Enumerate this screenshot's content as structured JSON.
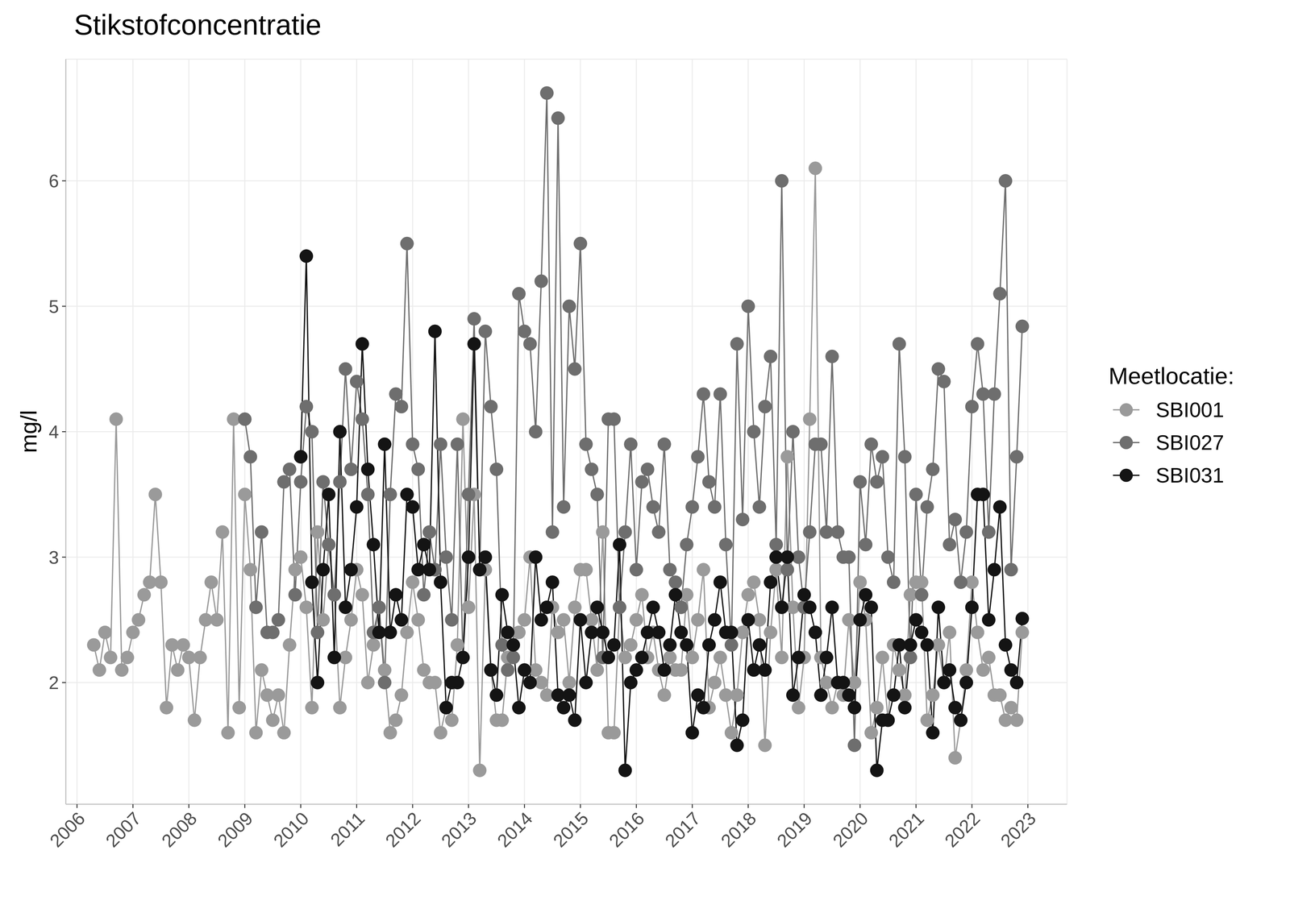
{
  "chart_data": {
    "type": "line",
    "title": "Stikstofconcentratie",
    "ylabel": "mg/l",
    "legend_title": "Meetlocatie:",
    "legend": "right",
    "grid": true,
    "marker": "circle",
    "line_style": "solid",
    "xlim": [
      2005.8,
      2023.7
    ],
    "xticks": [
      2006,
      2007,
      2008,
      2009,
      2010,
      2011,
      2012,
      2013,
      2014,
      2015,
      2016,
      2017,
      2018,
      2019,
      2020,
      2021,
      2022,
      2023
    ],
    "ylim": [
      1.03,
      6.97
    ],
    "yticks": [
      2,
      3,
      4,
      5,
      6
    ],
    "series": [
      {
        "name": "SBI001",
        "color": "#9a9a9a",
        "x": [
          2006.3,
          2006.4,
          2006.5,
          2006.6,
          2006.7,
          2006.8,
          2006.9,
          2007.0,
          2007.1,
          2007.2,
          2007.3,
          2007.4,
          2007.5,
          2007.6,
          2007.7,
          2007.8,
          2007.9,
          2008.0,
          2008.1,
          2008.2,
          2008.3,
          2008.4,
          2008.5,
          2008.6,
          2008.7,
          2008.8,
          2008.9,
          2009.0,
          2009.1,
          2009.2,
          2009.3,
          2009.4,
          2009.5,
          2009.6,
          2009.7,
          2009.8,
          2009.9,
          2010.0,
          2010.1,
          2010.2,
          2010.3,
          2010.4,
          2010.5,
          2010.6,
          2010.7,
          2010.8,
          2010.9,
          2011.0,
          2011.1,
          2011.2,
          2011.3,
          2011.4,
          2011.5,
          2011.6,
          2011.7,
          2011.8,
          2011.9,
          2012.0,
          2012.1,
          2012.2,
          2012.3,
          2012.4,
          2012.5,
          2012.6,
          2012.7,
          2012.8,
          2012.9,
          2013.0,
          2013.1,
          2013.2,
          2013.3,
          2013.4,
          2013.5,
          2013.6,
          2013.7,
          2013.8,
          2013.9,
          2014.0,
          2014.1,
          2014.2,
          2014.3,
          2014.4,
          2014.5,
          2014.6,
          2014.7,
          2014.8,
          2014.9,
          2015.0,
          2015.1,
          2015.2,
          2015.3,
          2015.4,
          2015.5,
          2015.6,
          2015.7,
          2015.8,
          2015.9,
          2016.0,
          2016.1,
          2016.2,
          2016.3,
          2016.4,
          2016.5,
          2016.6,
          2016.7,
          2016.8,
          2016.9,
          2017.0,
          2017.1,
          2017.2,
          2017.3,
          2017.4,
          2017.5,
          2017.6,
          2017.7,
          2017.8,
          2017.9,
          2018.0,
          2018.1,
          2018.2,
          2018.3,
          2018.4,
          2018.5,
          2018.6,
          2018.7,
          2018.8,
          2018.9,
          2019.0,
          2019.1,
          2019.2,
          2019.3,
          2019.4,
          2019.5,
          2019.6,
          2019.7,
          2019.8,
          2019.9,
          2020.0,
          2020.1,
          2020.2,
          2020.3,
          2020.4,
          2020.5,
          2020.6,
          2020.7,
          2020.8,
          2020.9,
          2021.0,
          2021.1,
          2021.2,
          2021.3,
          2021.4,
          2021.5,
          2021.6,
          2021.7,
          2021.8,
          2021.9,
          2022.0,
          2022.1,
          2022.2,
          2022.3,
          2022.4,
          2022.5,
          2022.6,
          2022.7,
          2022.8,
          2022.9
        ],
        "values": [
          2.3,
          2.1,
          2.4,
          2.2,
          4.1,
          2.1,
          2.2,
          2.4,
          2.5,
          2.7,
          2.8,
          3.5,
          2.8,
          1.8,
          2.3,
          2.1,
          2.3,
          2.2,
          1.7,
          2.2,
          2.5,
          2.8,
          2.5,
          3.2,
          1.6,
          4.1,
          1.8,
          3.5,
          2.9,
          1.6,
          2.1,
          1.9,
          1.7,
          1.9,
          1.6,
          2.3,
          2.9,
          3.0,
          2.6,
          1.8,
          3.2,
          2.5,
          3.1,
          2.7,
          1.8,
          2.2,
          2.5,
          2.9,
          2.7,
          2.0,
          2.3,
          2.6,
          2.1,
          1.6,
          1.7,
          1.9,
          2.4,
          2.8,
          2.5,
          2.1,
          2.0,
          2.0,
          1.6,
          1.8,
          1.7,
          2.3,
          4.1,
          2.6,
          3.5,
          1.3,
          2.9,
          2.1,
          1.7,
          1.7,
          2.2,
          2.3,
          2.4,
          2.5,
          3.0,
          2.1,
          2.0,
          1.9,
          2.6,
          2.4,
          2.5,
          2.0,
          2.6,
          2.9,
          2.9,
          2.5,
          2.1,
          3.2,
          1.6,
          1.6,
          2.6,
          2.2,
          2.3,
          2.5,
          2.7,
          2.2,
          2.4,
          2.1,
          1.9,
          2.2,
          2.1,
          2.1,
          2.7,
          2.2,
          2.5,
          2.9,
          1.8,
          2.0,
          2.2,
          1.9,
          1.6,
          1.9,
          2.4,
          2.7,
          2.8,
          2.5,
          1.5,
          2.4,
          2.9,
          2.2,
          3.8,
          2.6,
          1.8,
          2.2,
          4.1,
          6.1,
          2.2,
          2.0,
          1.8,
          2.0,
          1.9,
          2.5,
          2.0,
          2.8,
          2.5,
          1.6,
          1.8,
          2.2,
          1.7,
          2.3,
          2.1,
          1.9,
          2.7,
          2.8,
          2.8,
          1.7,
          1.9,
          2.3,
          2.0,
          2.4,
          1.4,
          1.7,
          2.1,
          2.8,
          2.4,
          2.1,
          2.2,
          1.9,
          1.9,
          1.7,
          1.8,
          1.7,
          2.4
        ]
      },
      {
        "name": "SBI027",
        "color": "#6e6e6e",
        "x": [
          2009.0,
          2009.1,
          2009.2,
          2009.3,
          2009.4,
          2009.5,
          2009.6,
          2009.7,
          2009.8,
          2009.9,
          2010.0,
          2010.1,
          2010.2,
          2010.3,
          2010.4,
          2010.5,
          2010.6,
          2010.7,
          2010.8,
          2010.9,
          2011.0,
          2011.1,
          2011.2,
          2011.3,
          2011.4,
          2011.5,
          2011.6,
          2011.7,
          2011.8,
          2011.9,
          2012.0,
          2012.1,
          2012.2,
          2012.3,
          2012.4,
          2012.5,
          2012.6,
          2012.7,
          2012.8,
          2012.9,
          2013.0,
          2013.1,
          2013.2,
          2013.3,
          2013.4,
          2013.5,
          2013.6,
          2013.7,
          2013.8,
          2013.9,
          2014.0,
          2014.1,
          2014.2,
          2014.3,
          2014.4,
          2014.5,
          2014.6,
          2014.7,
          2014.8,
          2014.9,
          2015.0,
          2015.1,
          2015.2,
          2015.3,
          2015.4,
          2015.5,
          2015.6,
          2015.7,
          2015.8,
          2015.9,
          2016.0,
          2016.1,
          2016.2,
          2016.3,
          2016.4,
          2016.5,
          2016.6,
          2016.7,
          2016.8,
          2016.9,
          2017.0,
          2017.1,
          2017.2,
          2017.3,
          2017.4,
          2017.5,
          2017.6,
          2017.7,
          2017.8,
          2017.9,
          2018.0,
          2018.1,
          2018.2,
          2018.3,
          2018.4,
          2018.5,
          2018.6,
          2018.7,
          2018.8,
          2018.9,
          2019.0,
          2019.1,
          2019.2,
          2019.3,
          2019.4,
          2019.5,
          2019.6,
          2019.7,
          2019.8,
          2019.9,
          2020.0,
          2020.1,
          2020.2,
          2020.3,
          2020.4,
          2020.5,
          2020.6,
          2020.7,
          2020.8,
          2020.9,
          2021.0,
          2021.1,
          2021.2,
          2021.3,
          2021.4,
          2021.5,
          2021.6,
          2021.7,
          2021.8,
          2021.9,
          2022.0,
          2022.1,
          2022.2,
          2022.3,
          2022.4,
          2022.5,
          2022.6,
          2022.7,
          2022.8,
          2022.9
        ],
        "values": [
          4.1,
          3.8,
          2.6,
          3.2,
          2.4,
          2.4,
          2.5,
          3.6,
          3.7,
          2.7,
          3.6,
          4.2,
          4.0,
          2.4,
          3.6,
          3.1,
          2.7,
          3.6,
          4.5,
          3.7,
          4.4,
          4.1,
          3.5,
          2.4,
          2.6,
          2.0,
          3.5,
          4.3,
          4.2,
          5.5,
          3.9,
          3.7,
          2.7,
          3.2,
          2.9,
          3.9,
          3.0,
          2.5,
          3.9,
          2.2,
          3.5,
          4.9,
          2.9,
          4.8,
          4.2,
          3.7,
          2.3,
          2.1,
          2.2,
          5.1,
          4.8,
          4.7,
          4.0,
          5.2,
          6.7,
          3.2,
          6.5,
          3.4,
          5.0,
          4.5,
          5.5,
          3.9,
          3.7,
          3.5,
          2.2,
          4.1,
          4.1,
          2.6,
          3.2,
          3.9,
          2.9,
          3.6,
          3.7,
          3.4,
          3.2,
          3.9,
          2.9,
          2.8,
          2.6,
          3.1,
          3.4,
          3.8,
          4.3,
          3.6,
          3.4,
          4.3,
          3.1,
          2.3,
          4.7,
          3.3,
          5.0,
          4.0,
          3.4,
          4.2,
          4.6,
          3.1,
          6.0,
          2.9,
          4.0,
          3.0,
          2.6,
          3.2,
          3.9,
          3.9,
          3.2,
          4.6,
          3.2,
          3.0,
          3.0,
          1.5,
          3.6,
          3.1,
          3.9,
          3.6,
          3.8,
          3.0,
          2.8,
          4.7,
          3.8,
          2.2,
          3.5,
          2.7,
          3.4,
          3.7,
          4.5,
          4.4,
          3.1,
          3.3,
          2.8,
          3.2,
          4.2,
          4.7,
          4.3,
          3.2,
          4.3,
          5.1,
          6.0,
          2.9,
          3.8,
          4.84
        ]
      },
      {
        "name": "SBI031",
        "color": "#141414",
        "x": [
          2010.0,
          2010.1,
          2010.2,
          2010.3,
          2010.4,
          2010.5,
          2010.6,
          2010.7,
          2010.8,
          2010.9,
          2011.0,
          2011.1,
          2011.2,
          2011.3,
          2011.4,
          2011.5,
          2011.6,
          2011.7,
          2011.8,
          2011.9,
          2012.0,
          2012.1,
          2012.2,
          2012.3,
          2012.4,
          2012.5,
          2012.6,
          2012.7,
          2012.8,
          2012.9,
          2013.0,
          2013.1,
          2013.2,
          2013.3,
          2013.4,
          2013.5,
          2013.6,
          2013.7,
          2013.8,
          2013.9,
          2014.0,
          2014.1,
          2014.2,
          2014.3,
          2014.4,
          2014.5,
          2014.6,
          2014.7,
          2014.8,
          2014.9,
          2015.0,
          2015.1,
          2015.2,
          2015.3,
          2015.4,
          2015.5,
          2015.6,
          2015.7,
          2015.8,
          2015.9,
          2016.0,
          2016.1,
          2016.2,
          2016.3,
          2016.4,
          2016.5,
          2016.6,
          2016.7,
          2016.8,
          2016.9,
          2017.0,
          2017.1,
          2017.2,
          2017.3,
          2017.4,
          2017.5,
          2017.6,
          2017.7,
          2017.8,
          2017.9,
          2018.0,
          2018.1,
          2018.2,
          2018.3,
          2018.4,
          2018.5,
          2018.6,
          2018.7,
          2018.8,
          2018.9,
          2019.0,
          2019.1,
          2019.2,
          2019.3,
          2019.4,
          2019.5,
          2019.6,
          2019.7,
          2019.8,
          2019.9,
          2020.0,
          2020.1,
          2020.2,
          2020.3,
          2020.4,
          2020.5,
          2020.6,
          2020.7,
          2020.8,
          2020.9,
          2021.0,
          2021.1,
          2021.2,
          2021.3,
          2021.4,
          2021.5,
          2021.6,
          2021.7,
          2021.8,
          2021.9,
          2022.0,
          2022.1,
          2022.2,
          2022.3,
          2022.4,
          2022.5,
          2022.6,
          2022.7,
          2022.8,
          2022.9
        ],
        "values": [
          3.8,
          5.4,
          2.8,
          2.0,
          2.9,
          3.5,
          2.2,
          4.0,
          2.6,
          2.9,
          3.4,
          4.7,
          3.7,
          3.1,
          2.4,
          3.9,
          2.4,
          2.7,
          2.5,
          3.5,
          3.4,
          2.9,
          3.1,
          2.9,
          4.8,
          2.8,
          1.8,
          2.0,
          2.0,
          2.2,
          3.0,
          4.7,
          2.9,
          3.0,
          2.1,
          1.9,
          2.7,
          2.4,
          2.3,
          1.8,
          2.1,
          2.0,
          3.0,
          2.5,
          2.6,
          2.8,
          1.9,
          1.8,
          1.9,
          1.7,
          2.5,
          2.0,
          2.4,
          2.6,
          2.4,
          2.2,
          2.3,
          3.1,
          1.3,
          2.0,
          2.1,
          2.2,
          2.4,
          2.6,
          2.4,
          2.1,
          2.3,
          2.7,
          2.4,
          2.3,
          1.6,
          1.9,
          1.8,
          2.3,
          2.5,
          2.8,
          2.4,
          2.4,
          1.5,
          1.7,
          2.5,
          2.1,
          2.3,
          2.1,
          2.8,
          3.0,
          2.6,
          3.0,
          1.9,
          2.2,
          2.7,
          2.6,
          2.4,
          1.9,
          2.2,
          2.6,
          2.0,
          2.0,
          1.9,
          1.8,
          2.5,
          2.7,
          2.6,
          1.3,
          1.7,
          1.7,
          1.9,
          2.3,
          1.8,
          2.3,
          2.5,
          2.4,
          2.3,
          1.6,
          2.6,
          2.0,
          2.1,
          1.8,
          1.7,
          2.0,
          2.6,
          3.5,
          3.5,
          2.5,
          2.9,
          3.4,
          2.3,
          2.1,
          2.0,
          2.51
        ]
      }
    ]
  }
}
